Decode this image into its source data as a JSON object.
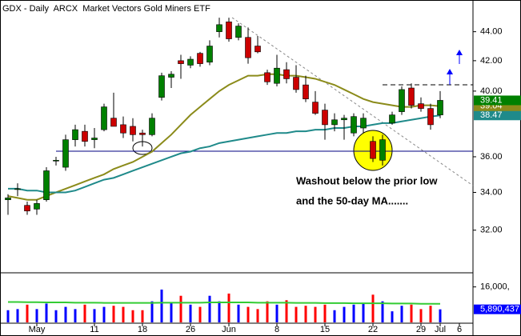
{
  "chart_data": {
    "type": "candlestick",
    "title": "GDX - Daily  ARCX  Market Vectors Gold Miners ETF",
    "log_scale": true,
    "up_color": "#008000",
    "down_color": "#cc0000",
    "categories": [
      null,
      null,
      null,
      "May",
      null,
      null,
      null,
      null,
      null,
      "11",
      null,
      null,
      null,
      null,
      "18",
      null,
      null,
      null,
      null,
      "26",
      null,
      null,
      null,
      "Jun",
      null,
      null,
      null,
      null,
      "8",
      null,
      null,
      null,
      null,
      "15",
      null,
      null,
      null,
      null,
      "22",
      null,
      null,
      null,
      null,
      "29",
      null,
      "Jul",
      null,
      "6"
    ],
    "open": [
      33.6,
      34.2,
      33.3,
      33.1,
      33.6,
      35.8,
      35.4,
      37.0,
      37.5,
      37.0,
      37.6,
      38.3,
      37.9,
      37.8,
      37.4,
      37.3,
      39.6,
      40.9,
      42.0,
      41.7,
      42.5,
      41.9,
      44.0,
      44.7,
      43.6,
      43.6,
      43.0,
      41.2,
      40.5,
      41.4,
      40.9,
      40.4,
      39.3,
      38.8,
      37.9,
      38.2,
      37.4,
      37.7,
      36.9,
      35.8,
      38.0,
      38.7,
      40.2,
      39.2,
      38.9,
      38.5,
      null,
      null
    ],
    "high": [
      33.9,
      34.5,
      33.5,
      33.6,
      35.4,
      36.0,
      37.3,
      37.9,
      37.9,
      37.7,
      39.2,
      39.9,
      38.4,
      38.3,
      37.6,
      38.6,
      41.2,
      41.3,
      42.4,
      42.3,
      42.6,
      43.4,
      45.0,
      45.0,
      44.6,
      44.3,
      43.7,
      41.4,
      42.4,
      41.9,
      41.7,
      41.0,
      40.0,
      39.2,
      38.6,
      38.5,
      38.6,
      38.6,
      37.2,
      37.3,
      38.7,
      40.3,
      40.5,
      39.6,
      39.2,
      40.0,
      null,
      null
    ],
    "low": [
      32.8,
      33.8,
      32.8,
      32.8,
      33.5,
      35.5,
      35.2,
      36.6,
      36.6,
      36.5,
      37.5,
      37.8,
      37.1,
      36.9,
      36.6,
      37.2,
      39.4,
      40.2,
      40.8,
      41.5,
      41.6,
      41.7,
      43.6,
      43.3,
      43.4,
      41.8,
      42.5,
      40.4,
      40.3,
      40.5,
      39.9,
      39.3,
      38.5,
      37.0,
      37.5,
      37.0,
      37.2,
      37.4,
      35.7,
      35.5,
      37.9,
      38.5,
      38.9,
      38.7,
      37.6,
      38.3,
      null,
      null
    ],
    "close": [
      33.7,
      34.2,
      33.0,
      33.4,
      35.2,
      35.8,
      37.0,
      37.6,
      36.9,
      37.1,
      39.0,
      37.8,
      37.4,
      37.3,
      37.3,
      38.3,
      41.0,
      41.1,
      41.8,
      42.1,
      41.8,
      43.0,
      44.5,
      43.5,
      44.4,
      42.2,
      42.6,
      40.6,
      41.5,
      40.8,
      40.1,
      39.5,
      38.6,
      37.9,
      38.2,
      38.3,
      38.4,
      38.3,
      35.9,
      37.0,
      38.5,
      40.1,
      39.1,
      38.9,
      37.9,
      39.41,
      null,
      null
    ],
    "moving_averages": [
      {
        "color": "#8b8b1a",
        "values": [
          33.8,
          33.7,
          33.6,
          33.6,
          33.8,
          34.0,
          34.2,
          34.4,
          34.6,
          34.8,
          35.0,
          35.3,
          35.5,
          35.7,
          36.0,
          36.3,
          36.8,
          37.3,
          37.9,
          38.5,
          39.0,
          39.5,
          40.0,
          40.4,
          40.7,
          41.0,
          41.0,
          41.1,
          41.1,
          41.0,
          41.0,
          40.9,
          40.8,
          40.6,
          40.4,
          40.1,
          39.8,
          39.5,
          39.3,
          39.2,
          39.1,
          39.0,
          39.0,
          39.1,
          39.1,
          39.04,
          null,
          null
        ]
      },
      {
        "color": "#1f8a8a",
        "values": [
          34.2,
          34.2,
          34.1,
          34.1,
          34.0,
          34.0,
          34.0,
          34.1,
          34.3,
          34.5,
          34.7,
          34.8,
          35.0,
          35.2,
          35.4,
          35.6,
          35.8,
          36.0,
          36.2,
          36.3,
          36.5,
          36.6,
          36.8,
          36.9,
          37.0,
          37.1,
          37.2,
          37.3,
          37.4,
          37.4,
          37.5,
          37.5,
          37.6,
          37.6,
          37.7,
          37.7,
          37.8,
          37.8,
          37.9,
          38.0,
          38.0,
          38.1,
          38.2,
          38.3,
          38.4,
          38.47,
          null,
          null
        ]
      }
    ],
    "last_close_color": "#008000",
    "ylim": [
      30,
      46
    ],
    "yticks": [
      {
        "value": 32,
        "label": "32.00"
      },
      {
        "value": 34,
        "label": "34.00"
      },
      {
        "value": 36,
        "label": "36.00"
      },
      {
        "value": 40,
        "label": "40.00"
      },
      {
        "value": 42,
        "label": "42.00"
      },
      {
        "value": 44,
        "label": "44.00"
      }
    ],
    "annotation": [
      "Washout below the prior low",
      "and the 50-day MA......."
    ],
    "volume": {
      "up_color": "#0000ff",
      "down_color": "#ff0000",
      "values": [
        5500000,
        6000000,
        8000000,
        6000000,
        8500000,
        5500000,
        7000000,
        6000000,
        8000000,
        6000000,
        7000000,
        7500000,
        7000000,
        5500000,
        5500000,
        9500000,
        14800000,
        9000000,
        12000000,
        8000000,
        7000000,
        12000000,
        9500000,
        13000000,
        8000000,
        7000000,
        6000000,
        9500000,
        8000000,
        10000000,
        7000000,
        7500000,
        7000000,
        8000000,
        5500000,
        7000000,
        8000000,
        8500000,
        12500000,
        9500000,
        5000000,
        7500000,
        8000000,
        6000000,
        7500000,
        5890437,
        null,
        null
      ],
      "value_labels": [
        null,
        null,
        null,
        null,
        null,
        null,
        null,
        null,
        null,
        null,
        null,
        null,
        null,
        null,
        null,
        null,
        null,
        null,
        null,
        null,
        null,
        null,
        null,
        null,
        null,
        null,
        null,
        null,
        null,
        null,
        null,
        null,
        null,
        null,
        null,
        null,
        null,
        null,
        null,
        null,
        null,
        null,
        null,
        null,
        null,
        "5,890,437",
        null,
        null
      ],
      "ma": {
        "color": "#33cc33",
        "values": [
          9200000,
          9200000,
          9100000,
          9100000,
          9000000,
          9000000,
          9000000,
          8900000,
          8900000,
          8900000,
          8800000,
          8800000,
          8800000,
          8800000,
          8800000,
          8800000,
          8900000,
          8900000,
          8900000,
          8900000,
          8900000,
          9000000,
          9000000,
          9000000,
          9000000,
          9000000,
          8900000,
          8900000,
          8900000,
          8900000,
          8800000,
          8800000,
          8800000,
          8700000,
          8700000,
          8700000,
          8600000,
          8600000,
          8600000,
          8600000,
          8500000,
          8500000,
          8500000,
          8400000,
          8400000,
          8400000,
          null,
          null
        ]
      },
      "ylim": [
        0,
        22000000
      ],
      "yticks": [
        {
          "value": 16000000,
          "label": "16,000,"
        }
      ]
    }
  }
}
